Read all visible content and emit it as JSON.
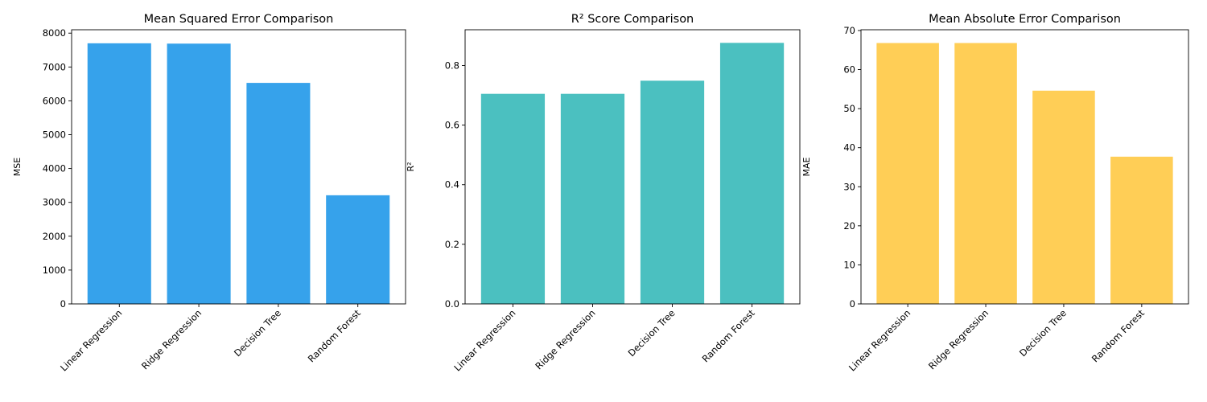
{
  "chart_data": [
    {
      "type": "bar",
      "title": "Mean Squared Error Comparison",
      "ylabel": "MSE",
      "xlabel": "",
      "categories": [
        "Linear Regression",
        "Ridge Regression",
        "Decision Tree",
        "Random Forest"
      ],
      "values": [
        7700,
        7690,
        6530,
        3210
      ],
      "ylim": [
        0,
        8100
      ],
      "yticks": [
        0,
        1000,
        2000,
        3000,
        4000,
        5000,
        6000,
        7000,
        8000
      ],
      "ytick_labels": [
        "0",
        "1000",
        "2000",
        "3000",
        "4000",
        "5000",
        "6000",
        "7000",
        "8000"
      ],
      "color": "#36A2EB",
      "grid": false
    },
    {
      "type": "bar",
      "title": "R² Score Comparison",
      "ylabel": "R²",
      "xlabel": "",
      "categories": [
        "Linear Regression",
        "Ridge Regression",
        "Decision Tree",
        "Random Forest"
      ],
      "values": [
        0.705,
        0.705,
        0.749,
        0.876
      ],
      "ylim": [
        0,
        0.92
      ],
      "yticks": [
        0,
        0.2,
        0.4,
        0.6,
        0.8
      ],
      "ytick_labels": [
        "0.0",
        "0.2",
        "0.4",
        "0.6",
        "0.8"
      ],
      "color": "#4BC0C0",
      "grid": false
    },
    {
      "type": "bar",
      "title": "Mean Absolute Error Comparison",
      "ylabel": "MAE",
      "xlabel": "",
      "categories": [
        "Linear Regression",
        "Ridge Regression",
        "Decision Tree",
        "Random Forest"
      ],
      "values": [
        66.8,
        66.8,
        54.6,
        37.7
      ],
      "ylim": [
        0,
        70.2
      ],
      "yticks": [
        0,
        10,
        20,
        30,
        40,
        50,
        60,
        70
      ],
      "ytick_labels": [
        "0",
        "10",
        "20",
        "30",
        "40",
        "50",
        "60",
        "70"
      ],
      "color": "#FFCE56",
      "grid": false
    }
  ]
}
